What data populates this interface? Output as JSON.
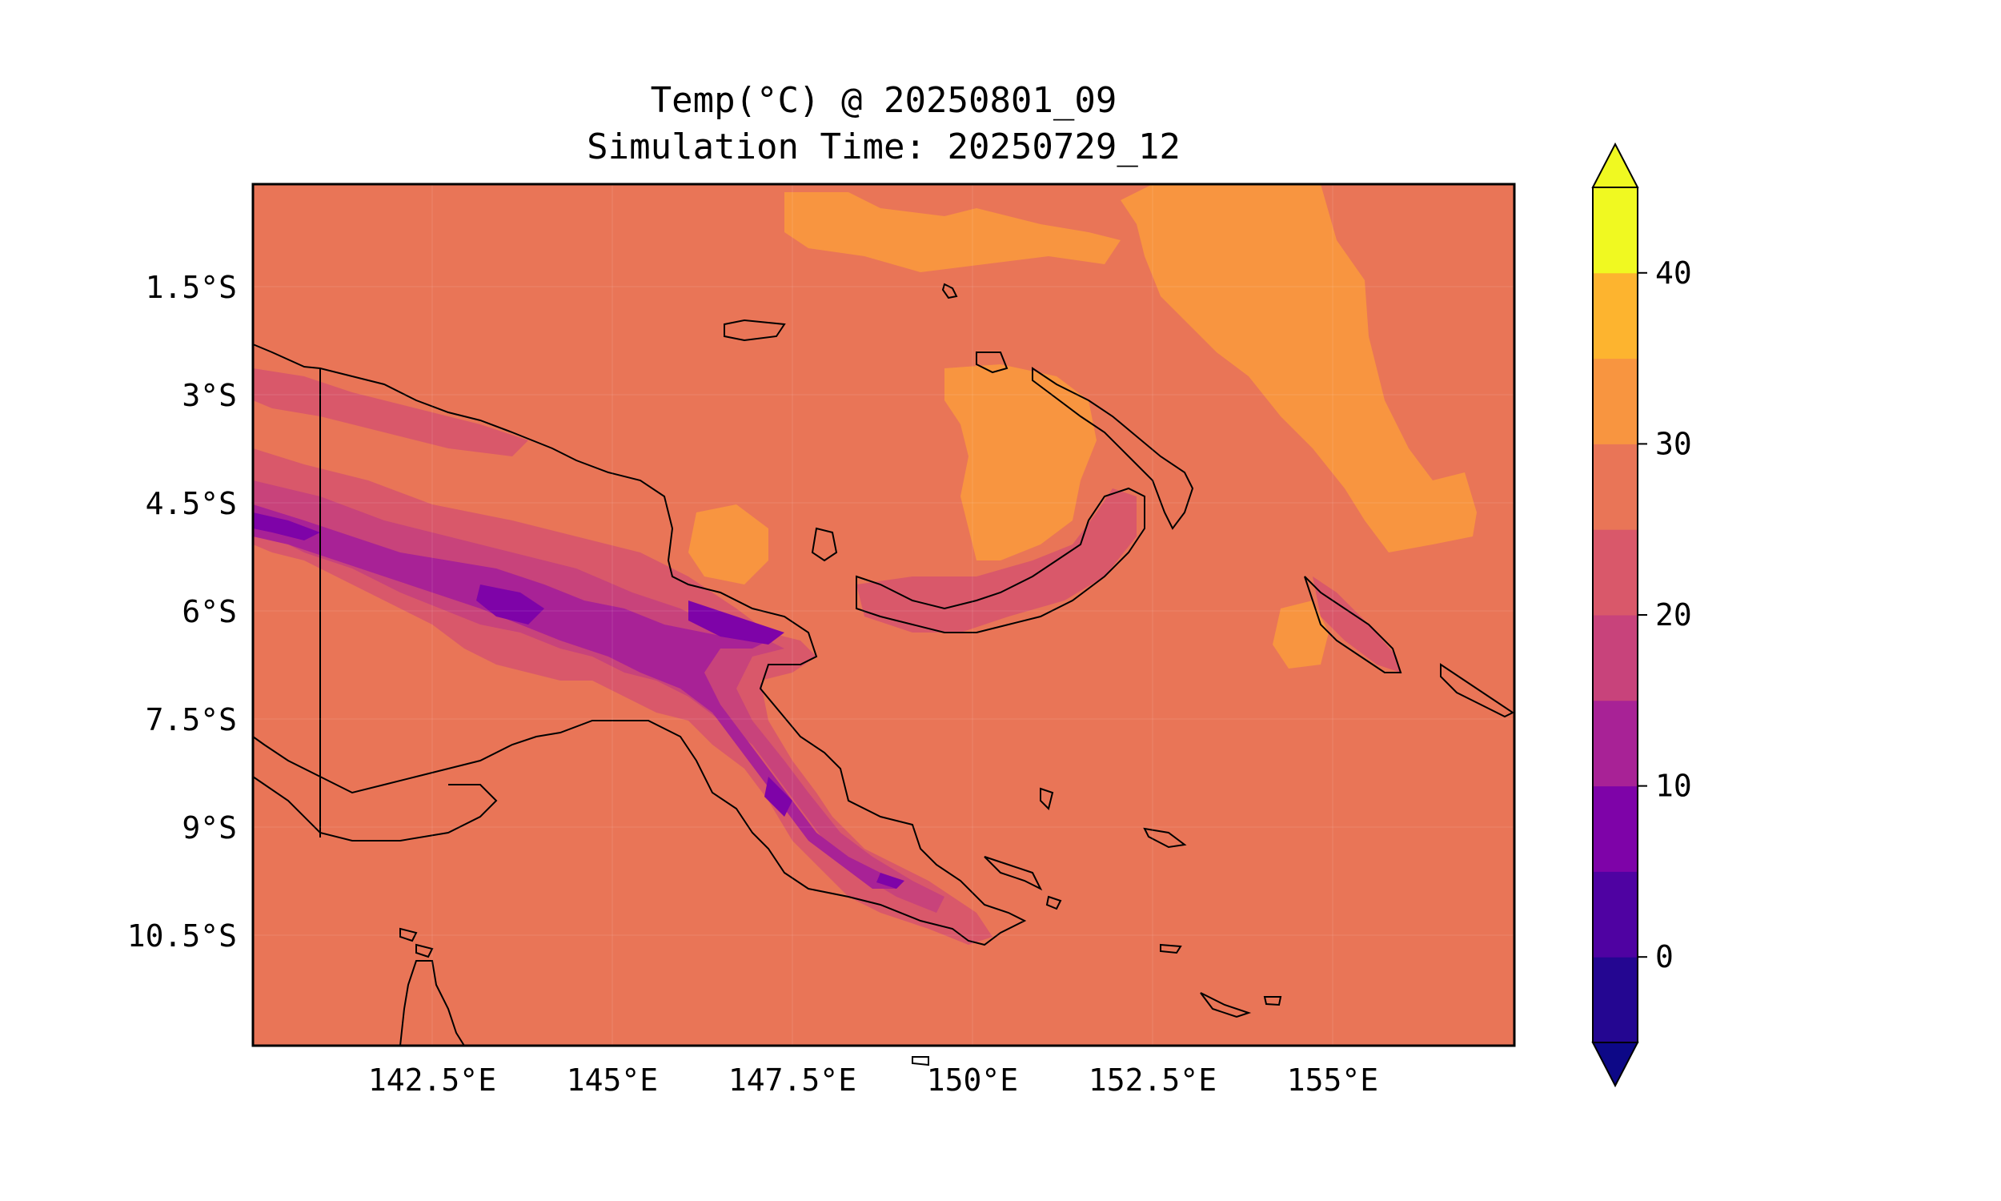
{
  "title": {
    "line1": "Temp(°C) @ 20250801_09",
    "line2": "Simulation Time: 20250729_12"
  },
  "map": {
    "region": "Papua New Guinea",
    "lat_labels": [
      "1.5°S",
      "3°S",
      "4.5°S",
      "6°S",
      "7.5°S",
      "9°S",
      "10.5°S"
    ],
    "lon_labels": [
      "142.5°E",
      "145°E",
      "147.5°E",
      "150°E",
      "152.5°E",
      "155°E"
    ],
    "background_color": "#e97557",
    "coastline_color": "#000000"
  },
  "colorbar": {
    "tick_labels": [
      "0",
      "10",
      "20",
      "30",
      "40"
    ],
    "levels": [
      -5,
      0,
      5,
      10,
      15,
      20,
      25,
      30,
      35,
      40,
      45
    ],
    "extend": "both",
    "colormap": "plasma",
    "colors": [
      "#240691",
      "#4f02a2",
      "#7e03a8",
      "#a82296",
      "#c8437b",
      "#d9586a",
      "#e97557",
      "#f89540",
      "#fdb42f",
      "#f0f921"
    ],
    "under_color": "#0d0887",
    "over_color": "#f0f921"
  }
}
